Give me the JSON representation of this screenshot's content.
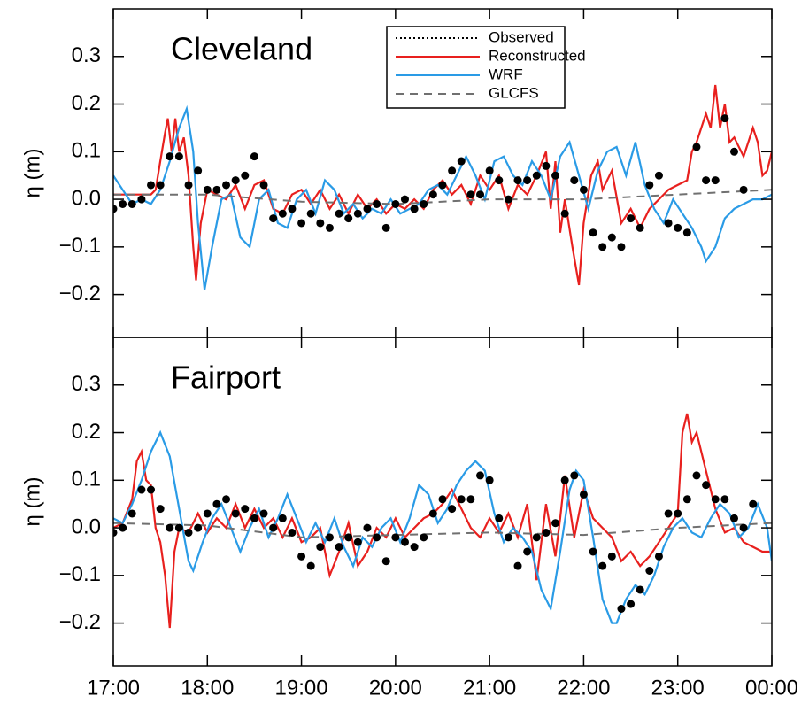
{
  "chart_data": [
    {
      "type": "line",
      "title": "Cleveland",
      "ylabel": "η (m)",
      "legend": "top",
      "xlim": [
        17,
        24
      ],
      "ylim": [
        -0.29,
        0.4
      ],
      "yticks": [
        {
          "value": -0.2,
          "label": "−0.2"
        },
        {
          "value": -0.1,
          "label": "−0.1"
        },
        {
          "value": 0,
          "label": "0.0"
        },
        0.1,
        0.2,
        0.3
      ],
      "series": [
        {
          "name": "Observed",
          "color": "#000000",
          "style": "dots",
          "x": [
            17.0,
            17.1,
            17.2,
            17.3,
            17.4,
            17.5,
            17.6,
            17.7,
            17.8,
            17.9,
            18.0,
            18.1,
            18.2,
            18.3,
            18.4,
            18.5,
            18.6,
            18.7,
            18.8,
            18.9,
            19.0,
            19.1,
            19.2,
            19.3,
            19.4,
            19.5,
            19.6,
            19.7,
            19.8,
            19.9,
            20.0,
            20.1,
            20.2,
            20.3,
            20.4,
            20.5,
            20.6,
            20.7,
            20.8,
            20.9,
            21.0,
            21.1,
            21.2,
            21.3,
            21.4,
            21.5,
            21.6,
            21.7,
            21.8,
            21.9,
            22.0,
            22.1,
            22.2,
            22.3,
            22.4,
            22.5,
            22.6,
            22.7,
            22.8,
            22.9,
            23.0,
            23.1,
            23.2,
            23.3,
            23.4,
            23.5,
            23.6,
            23.7
          ],
          "values": [
            -0.02,
            -0.01,
            -0.01,
            0.0,
            0.03,
            0.03,
            0.09,
            0.09,
            0.03,
            0.06,
            0.02,
            0.02,
            0.03,
            0.04,
            0.05,
            0.09,
            0.03,
            -0.04,
            -0.03,
            -0.02,
            -0.05,
            -0.03,
            -0.05,
            -0.06,
            -0.03,
            -0.04,
            -0.03,
            -0.02,
            -0.01,
            -0.06,
            -0.01,
            0.0,
            -0.02,
            -0.01,
            0.01,
            0.03,
            0.06,
            0.08,
            0.01,
            0.01,
            0.06,
            0.04,
            0.0,
            0.04,
            0.04,
            0.05,
            0.07,
            0.05,
            -0.03,
            0.04,
            0.02,
            -0.07,
            -0.1,
            -0.08,
            -0.1,
            -0.04,
            -0.06,
            0.03,
            0.05,
            -0.05,
            -0.06,
            -0.07,
            0.11,
            0.04,
            0.04,
            0.17,
            0.1,
            0.02
          ]
        },
        {
          "name": "Reconstructed",
          "color": "#e8201e",
          "style": "solid",
          "x": [
            17.0,
            17.4,
            17.45,
            17.5,
            17.55,
            17.58,
            17.62,
            17.66,
            17.7,
            17.75,
            17.8,
            17.85,
            17.88,
            17.93,
            18.0,
            18.1,
            18.2,
            18.3,
            18.4,
            18.5,
            18.6,
            18.7,
            18.8,
            18.9,
            19.0,
            19.1,
            19.2,
            19.3,
            19.4,
            19.5,
            19.6,
            19.7,
            19.8,
            19.9,
            20.0,
            20.1,
            20.2,
            20.3,
            20.4,
            20.5,
            20.6,
            20.7,
            20.8,
            20.9,
            21.0,
            21.1,
            21.2,
            21.3,
            21.4,
            21.5,
            21.6,
            21.65,
            21.7,
            21.75,
            21.8,
            21.88,
            21.95,
            22.0,
            22.08,
            22.15,
            22.2,
            22.3,
            22.4,
            22.5,
            22.6,
            22.7,
            22.8,
            22.9,
            23.0,
            23.1,
            23.15,
            23.2,
            23.3,
            23.35,
            23.4,
            23.45,
            23.5,
            23.55,
            23.6,
            23.7,
            23.8,
            23.85,
            23.9,
            23.95,
            24.0
          ],
          "values": [
            0.01,
            0.01,
            0.02,
            0.08,
            0.14,
            0.17,
            0.1,
            0.17,
            0.1,
            0.13,
            0.05,
            -0.1,
            -0.17,
            -0.05,
            0.02,
            0.01,
            0.0,
            0.03,
            -0.02,
            0.03,
            0.04,
            -0.02,
            -0.03,
            0.01,
            0.02,
            -0.01,
            0.02,
            -0.02,
            0.01,
            -0.03,
            0.01,
            -0.02,
            0.0,
            -0.03,
            -0.01,
            -0.02,
            0.0,
            -0.02,
            0.02,
            0.04,
            0.01,
            0.03,
            -0.01,
            0.05,
            0.02,
            0.05,
            -0.02,
            0.03,
            0.01,
            0.05,
            0.1,
            -0.02,
            0.08,
            -0.07,
            0.0,
            -0.1,
            -0.18,
            -0.05,
            0.05,
            0.08,
            0.02,
            0.06,
            -0.05,
            -0.02,
            -0.06,
            -0.02,
            0.0,
            0.02,
            0.03,
            0.04,
            0.1,
            0.12,
            0.18,
            0.15,
            0.24,
            0.15,
            0.2,
            0.12,
            0.13,
            0.09,
            0.15,
            0.12,
            0.05,
            0.06,
            0.1
          ]
        },
        {
          "name": "WRF",
          "color": "#2a9be6",
          "style": "solid",
          "x": [
            17.0,
            17.1,
            17.2,
            17.3,
            17.4,
            17.5,
            17.6,
            17.7,
            17.78,
            17.85,
            17.9,
            17.97,
            18.05,
            18.15,
            18.25,
            18.35,
            18.45,
            18.55,
            18.65,
            18.75,
            18.85,
            18.95,
            19.05,
            19.15,
            19.25,
            19.35,
            19.45,
            19.55,
            19.65,
            19.75,
            19.85,
            19.95,
            20.05,
            20.15,
            20.25,
            20.35,
            20.45,
            20.55,
            20.65,
            20.75,
            20.85,
            20.95,
            21.05,
            21.15,
            21.25,
            21.35,
            21.45,
            21.55,
            21.65,
            21.75,
            21.85,
            21.95,
            22.05,
            22.15,
            22.25,
            22.35,
            22.45,
            22.55,
            22.65,
            22.75,
            22.85,
            22.95,
            23.05,
            23.15,
            23.25,
            23.3,
            23.4,
            23.5,
            23.6,
            23.7,
            23.8,
            23.9,
            24.0
          ],
          "values": [
            0.05,
            0.02,
            -0.01,
            0.0,
            -0.01,
            0.02,
            0.08,
            0.15,
            0.19,
            0.1,
            -0.05,
            -0.19,
            -0.1,
            0.0,
            0.01,
            -0.08,
            -0.1,
            0.0,
            0.02,
            -0.05,
            -0.06,
            0.0,
            0.02,
            -0.03,
            0.04,
            0.02,
            -0.03,
            -0.01,
            -0.04,
            -0.02,
            -0.03,
            0.0,
            -0.03,
            -0.02,
            -0.01,
            0.02,
            0.03,
            0.01,
            0.05,
            0.09,
            0.05,
            0.0,
            0.08,
            0.09,
            0.05,
            0.03,
            0.08,
            0.05,
            0.0,
            0.09,
            0.12,
            0.05,
            -0.02,
            0.06,
            0.1,
            0.11,
            0.05,
            0.12,
            0.03,
            -0.02,
            -0.05,
            0.0,
            -0.03,
            -0.06,
            -0.1,
            -0.13,
            -0.1,
            -0.04,
            -0.02,
            -0.01,
            0.0,
            0.0,
            0.01
          ]
        },
        {
          "name": "GLCFS",
          "color": "#707070",
          "style": "dashed",
          "x": [
            17,
            18,
            19,
            20,
            21,
            22,
            23,
            24
          ],
          "values": [
            0.01,
            0.01,
            -0.005,
            -0.01,
            0.0,
            0.0,
            0.01,
            0.02
          ]
        }
      ]
    },
    {
      "type": "line",
      "title": "Fairport",
      "ylabel": "η (m)",
      "xlim": [
        17,
        24
      ],
      "ylim": [
        -0.29,
        0.4
      ],
      "xticks": [
        {
          "value": 17,
          "label": "17:00"
        },
        {
          "value": 18,
          "label": "18:00"
        },
        {
          "value": 19,
          "label": "19:00"
        },
        {
          "value": 20,
          "label": "20:00"
        },
        {
          "value": 21,
          "label": "21:00"
        },
        {
          "value": 22,
          "label": "22:00"
        },
        {
          "value": 23,
          "label": "23:00"
        },
        {
          "value": 24,
          "label": "00:00"
        }
      ],
      "yticks": [
        {
          "value": -0.2,
          "label": "−0.2"
        },
        {
          "value": -0.1,
          "label": "−0.1"
        },
        {
          "value": 0,
          "label": "0.0"
        },
        0.1,
        0.2,
        0.3
      ],
      "series": [
        {
          "color": "#000000",
          "style": "dots",
          "x": [
            17.0,
            17.1,
            17.2,
            17.3,
            17.4,
            17.5,
            17.6,
            17.7,
            17.8,
            17.9,
            18.0,
            18.1,
            18.2,
            18.3,
            18.4,
            18.5,
            18.6,
            18.7,
            18.8,
            18.9,
            19.0,
            19.1,
            19.2,
            19.3,
            19.4,
            19.5,
            19.6,
            19.7,
            19.8,
            19.9,
            20.0,
            20.1,
            20.2,
            20.3,
            20.4,
            20.5,
            20.6,
            20.7,
            20.8,
            20.9,
            21.0,
            21.1,
            21.2,
            21.3,
            21.4,
            21.5,
            21.6,
            21.7,
            21.8,
            21.9,
            22.0,
            22.1,
            22.2,
            22.3,
            22.4,
            22.5,
            22.6,
            22.7,
            22.8,
            22.9,
            23.0,
            23.1,
            23.2,
            23.3,
            23.4,
            23.5,
            23.6,
            23.7,
            23.8
          ],
          "values": [
            -0.01,
            0.0,
            0.03,
            0.08,
            0.08,
            0.04,
            0.0,
            0.0,
            -0.01,
            0.0,
            0.03,
            0.05,
            0.06,
            0.03,
            0.04,
            0.02,
            0.03,
            0.0,
            0.02,
            -0.01,
            -0.06,
            -0.08,
            -0.04,
            -0.02,
            -0.04,
            -0.02,
            -0.03,
            0.0,
            -0.02,
            -0.07,
            -0.02,
            -0.03,
            -0.04,
            -0.02,
            0.03,
            0.06,
            0.04,
            0.06,
            0.06,
            0.11,
            0.1,
            0.02,
            -0.02,
            -0.08,
            -0.05,
            -0.02,
            -0.01,
            0.01,
            0.1,
            0.11,
            0.07,
            -0.05,
            -0.08,
            -0.06,
            -0.17,
            -0.16,
            -0.13,
            -0.09,
            -0.06,
            0.03,
            0.03,
            0.06,
            0.11,
            0.09,
            0.06,
            0.06,
            0.02,
            0.0,
            0.05
          ]
        },
        {
          "color": "#e8201e",
          "style": "solid",
          "x": [
            17.0,
            17.1,
            17.2,
            17.25,
            17.3,
            17.35,
            17.4,
            17.45,
            17.5,
            17.55,
            17.6,
            17.65,
            17.7,
            17.8,
            17.9,
            18.0,
            18.1,
            18.2,
            18.3,
            18.4,
            18.5,
            18.6,
            18.7,
            18.8,
            18.9,
            19.0,
            19.1,
            19.2,
            19.3,
            19.4,
            19.5,
            19.6,
            19.7,
            19.8,
            19.9,
            20.0,
            20.1,
            20.2,
            20.3,
            20.4,
            20.5,
            20.6,
            20.7,
            20.8,
            20.9,
            21.0,
            21.1,
            21.2,
            21.3,
            21.4,
            21.5,
            21.55,
            21.6,
            21.7,
            21.75,
            21.8,
            21.9,
            22.0,
            22.1,
            22.2,
            22.3,
            22.4,
            22.5,
            22.6,
            22.7,
            22.8,
            22.9,
            23.0,
            23.05,
            23.1,
            23.15,
            23.2,
            23.3,
            23.4,
            23.5,
            23.6,
            23.7,
            23.8,
            23.9,
            24.0
          ],
          "values": [
            0.0,
            0.01,
            0.06,
            0.14,
            0.16,
            0.1,
            0.09,
            0.0,
            -0.03,
            -0.1,
            -0.21,
            -0.05,
            0.0,
            -0.01,
            0.03,
            -0.01,
            0.02,
            0.0,
            0.05,
            0.0,
            0.04,
            0.0,
            0.02,
            -0.02,
            0.02,
            -0.03,
            -0.02,
            0.0,
            -0.1,
            -0.05,
            0.01,
            -0.08,
            -0.05,
            0.0,
            -0.02,
            0.02,
            -0.02,
            0.0,
            0.02,
            0.03,
            0.05,
            0.08,
            0.04,
            0.0,
            -0.02,
            0.02,
            -0.01,
            0.03,
            -0.02,
            0.05,
            -0.11,
            -0.03,
            0.05,
            -0.06,
            0.02,
            0.11,
            -0.02,
            0.08,
            0.02,
            0.0,
            -0.02,
            -0.07,
            -0.05,
            -0.08,
            -0.06,
            -0.03,
            0.0,
            0.03,
            0.2,
            0.24,
            0.18,
            0.2,
            0.12,
            0.04,
            -0.01,
            0.0,
            -0.03,
            -0.04,
            -0.05,
            -0.05
          ]
        },
        {
          "color": "#2a9be6",
          "style": "solid",
          "x": [
            17.0,
            17.1,
            17.2,
            17.3,
            17.4,
            17.5,
            17.6,
            17.7,
            17.8,
            17.85,
            17.95,
            18.05,
            18.15,
            18.25,
            18.35,
            18.45,
            18.55,
            18.65,
            18.75,
            18.85,
            18.95,
            19.05,
            19.15,
            19.25,
            19.35,
            19.45,
            19.55,
            19.65,
            19.75,
            19.85,
            19.95,
            20.05,
            20.15,
            20.25,
            20.35,
            20.45,
            20.55,
            20.65,
            20.75,
            20.85,
            20.95,
            21.05,
            21.15,
            21.25,
            21.35,
            21.45,
            21.55,
            21.65,
            21.75,
            21.85,
            21.92,
            22.0,
            22.1,
            22.2,
            22.3,
            22.35,
            22.45,
            22.55,
            22.65,
            22.75,
            22.85,
            22.95,
            23.05,
            23.15,
            23.25,
            23.35,
            23.45,
            23.55,
            23.65,
            23.75,
            23.85,
            23.95,
            24.0
          ],
          "values": [
            0.02,
            0.01,
            0.05,
            0.1,
            0.16,
            0.2,
            0.15,
            0.04,
            -0.07,
            -0.09,
            -0.03,
            0.02,
            0.05,
            0.0,
            -0.05,
            0.0,
            0.04,
            -0.02,
            0.02,
            0.07,
            0.02,
            -0.03,
            0.01,
            -0.03,
            0.02,
            -0.04,
            -0.08,
            -0.02,
            -0.04,
            0.0,
            0.02,
            -0.03,
            0.02,
            0.09,
            0.07,
            0.01,
            0.04,
            0.09,
            0.12,
            0.14,
            0.12,
            0.03,
            -0.03,
            0.0,
            -0.02,
            -0.05,
            -0.13,
            -0.17,
            -0.05,
            0.08,
            0.12,
            0.1,
            -0.02,
            -0.15,
            -0.2,
            -0.2,
            -0.15,
            -0.12,
            -0.14,
            -0.1,
            -0.04,
            0.0,
            0.02,
            -0.01,
            -0.02,
            0.02,
            0.05,
            0.03,
            -0.02,
            0.0,
            0.05,
            0.0,
            -0.07
          ]
        },
        {
          "color": "#707070",
          "style": "dashed",
          "x": [
            17,
            18,
            19,
            20,
            21,
            22,
            23,
            24
          ],
          "values": [
            0.01,
            0.005,
            -0.02,
            -0.015,
            -0.01,
            -0.015,
            0.0,
            0.01
          ]
        }
      ]
    }
  ]
}
